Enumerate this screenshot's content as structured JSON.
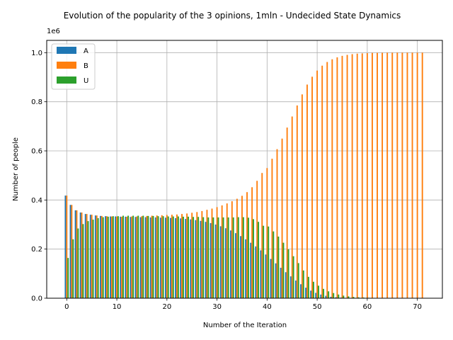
{
  "chart_data": {
    "type": "bar",
    "title": "Evolution of the popularity of the 3 opinions, 1mln - Undecided State Dynamics",
    "xlabel": "Number of the Iteration",
    "ylabel": "Number of people",
    "scale_label": "1e6",
    "xlim": [
      -4,
      75
    ],
    "ylim": [
      0,
      1050000
    ],
    "xticks": [
      0,
      10,
      20,
      30,
      40,
      50,
      60,
      70
    ],
    "xtick_labels": [
      "0",
      "10",
      "20",
      "30",
      "40",
      "50",
      "60",
      "70"
    ],
    "yticks": [
      0,
      200000,
      400000,
      600000,
      800000,
      1000000
    ],
    "ytick_labels": [
      "0.0",
      "0.2",
      "0.4",
      "0.6",
      "0.8",
      "1.0"
    ],
    "grid": true,
    "legend_position": "upper-left",
    "x": [
      0,
      1,
      2,
      3,
      4,
      5,
      6,
      7,
      8,
      9,
      10,
      11,
      12,
      13,
      14,
      15,
      16,
      17,
      18,
      19,
      20,
      21,
      22,
      23,
      24,
      25,
      26,
      27,
      28,
      29,
      30,
      31,
      32,
      33,
      34,
      35,
      36,
      37,
      38,
      39,
      40,
      41,
      42,
      43,
      44,
      45,
      46,
      47,
      48,
      49,
      50,
      51,
      52,
      53,
      54,
      55,
      56,
      57,
      58,
      59,
      60,
      61,
      62,
      63,
      64,
      65,
      66,
      67,
      68,
      69,
      70,
      71
    ],
    "series": [
      {
        "name": "A",
        "color": "#1f77b4",
        "values": [
          418000,
          380000,
          358000,
          349000,
          343000,
          340000,
          337000,
          335000,
          334000,
          333000,
          333000,
          332000,
          332000,
          331000,
          331000,
          330000,
          330000,
          329000,
          329000,
          328000,
          328000,
          327000,
          326000,
          325000,
          323000,
          321000,
          318000,
          315000,
          311000,
          306000,
          300000,
          293000,
          285000,
          276000,
          265000,
          253000,
          240000,
          226000,
          211000,
          195000,
          178000,
          160000,
          142000,
          124000,
          106000,
          89000,
          72000,
          57000,
          43000,
          31000,
          22000,
          15000,
          10000,
          6000,
          4000,
          2500,
          1500,
          900,
          500,
          300,
          150,
          80,
          40,
          20,
          10,
          5,
          2,
          1,
          0,
          0,
          0,
          0
        ]
      },
      {
        "name": "B",
        "color": "#ff7f0e",
        "values": [
          418000,
          380000,
          358000,
          349000,
          343000,
          340000,
          337000,
          335000,
          334000,
          333000,
          333000,
          332000,
          332000,
          333000,
          333000,
          334000,
          335000,
          336000,
          337000,
          338000,
          339000,
          340000,
          341000,
          343000,
          345000,
          348000,
          351000,
          355000,
          360000,
          365000,
          371000,
          378000,
          386000,
          395000,
          405000,
          417000,
          432000,
          452000,
          478000,
          510000,
          530000,
          568000,
          607000,
          650000,
          695000,
          740000,
          785000,
          830000,
          870000,
          902000,
          927000,
          947000,
          962000,
          973000,
          981000,
          987000,
          991000,
          994000,
          996000,
          997000,
          998000,
          999000,
          999000,
          999500,
          999700,
          999800,
          999900,
          999950,
          999980,
          999990,
          999995,
          999999
        ]
      },
      {
        "name": "U",
        "color": "#2ca02c",
        "values": [
          164000,
          240000,
          284000,
          302000,
          314000,
          320000,
          326000,
          330000,
          332000,
          334000,
          334000,
          336000,
          336000,
          336000,
          336000,
          336000,
          335000,
          335000,
          334000,
          334000,
          333000,
          333000,
          333000,
          332000,
          332000,
          331000,
          331000,
          330000,
          329000,
          329000,
          329000,
          329000,
          329000,
          329000,
          330000,
          330000,
          328000,
          322000,
          311000,
          295000,
          292000,
          272000,
          251000,
          226000,
          199000,
          171000,
          143000,
          113000,
          87000,
          67000,
          51000,
          38000,
          28000,
          21000,
          15000,
          10500,
          7500,
          5100,
          3500,
          2700,
          1850,
          920,
          960,
          480,
          290,
          195,
          98,
          49,
          20,
          10,
          5,
          0
        ]
      }
    ]
  }
}
